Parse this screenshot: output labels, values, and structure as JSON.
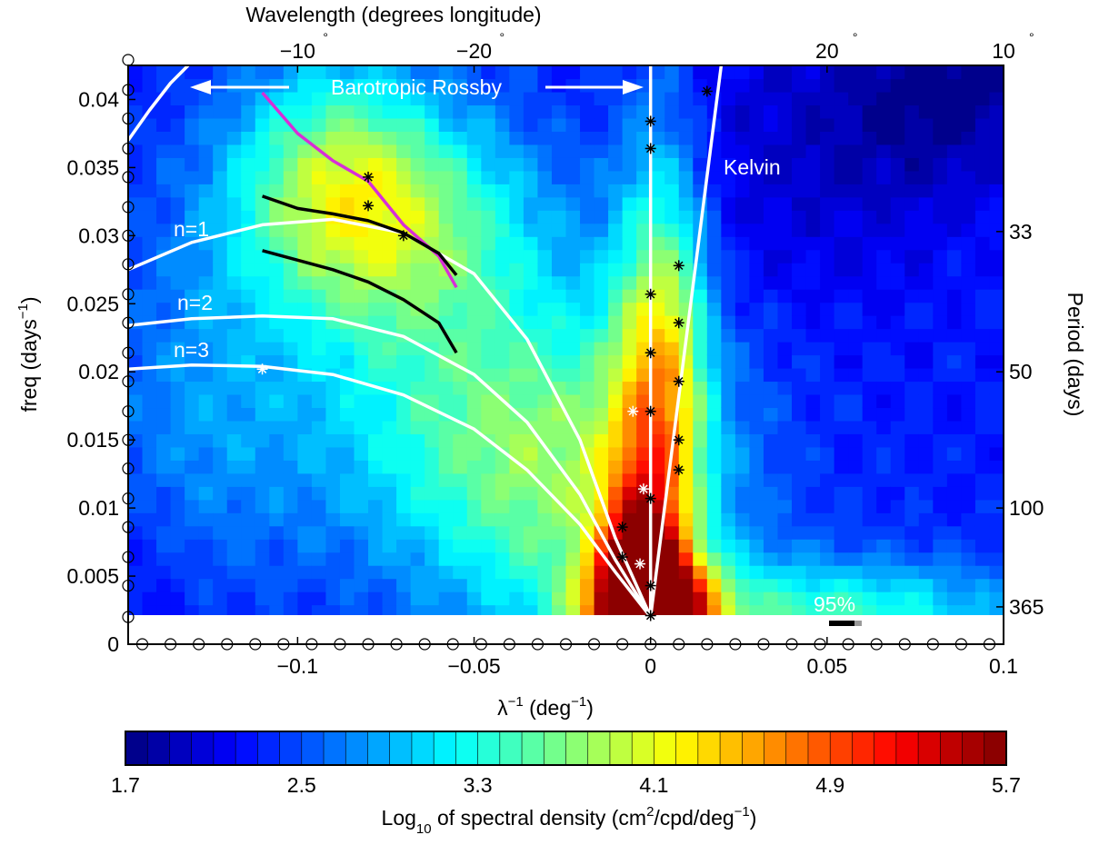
{
  "chart_data": {
    "type": "heatmap",
    "top_axis": {
      "label": "Wavelength (degrees longitude)",
      "ticks": [
        {
          "x": -0.1,
          "label": "−10",
          "sup": "°"
        },
        {
          "x": -0.05,
          "label": "−20",
          "sup": "°"
        },
        {
          "x": 0.05,
          "label": "20",
          "sup": "°"
        },
        {
          "x": 0.1,
          "label": "10",
          "sup": "°"
        }
      ]
    },
    "x_axis": {
      "label_main": "λ",
      "label_sup": "−1",
      "label_rest": " (deg",
      "label_sup2": "−1",
      "label_end": ")",
      "range": [
        -0.148,
        0.1
      ],
      "ticks": [
        -0.1,
        -0.05,
        0,
        0.05,
        0.1
      ],
      "tick_labels": [
        "−0.1",
        "−0.05",
        "0",
        "0.05",
        "0.1"
      ]
    },
    "y_axis": {
      "label_main": "freq (days",
      "label_sup": "−1",
      "label_end": ")",
      "range": [
        0,
        0.0425
      ],
      "ticks": [
        0,
        0.005,
        0.01,
        0.015,
        0.02,
        0.025,
        0.03,
        0.035,
        0.04
      ],
      "tick_labels": [
        "0",
        "0.005",
        "0.01",
        "0.015",
        "0.02",
        "0.025",
        "0.03",
        "0.035",
        "0.04"
      ]
    },
    "right_axis": {
      "label": "Period (days)",
      "ticks": [
        {
          "freq": 0.0303,
          "label": "33"
        },
        {
          "freq": 0.02,
          "label": "50"
        },
        {
          "freq": 0.01,
          "label": "100"
        },
        {
          "freq": 0.00274,
          "label": "365"
        }
      ]
    },
    "annotations": {
      "barotropic": "Barotropic Rossby",
      "kelvin": "Kelvin",
      "n1": "n=1",
      "n2": "n=2",
      "n3": "n=3",
      "significance": "95%"
    },
    "colorbar": {
      "min": 1.7,
      "max": 5.7,
      "ticks": [
        1.7,
        2.5,
        3.3,
        4.1,
        4.9,
        5.7
      ],
      "tick_labels": [
        "1.7",
        "2.5",
        "3.3",
        "4.1",
        "4.9",
        "5.7"
      ],
      "label_pre": "Log",
      "label_sub": "10",
      "label_mid": " of spectral density (cm",
      "label_sup": "2",
      "label_mid2": "/cpd/deg",
      "label_sup3": "−1",
      "label_end": ")"
    },
    "dispersion_curves": [
      {
        "name": "n=1",
        "points": [
          [
            -0.148,
            0.0275
          ],
          [
            -0.13,
            0.0295
          ],
          [
            -0.11,
            0.0308
          ],
          [
            -0.09,
            0.0312
          ],
          [
            -0.07,
            0.0302
          ],
          [
            -0.05,
            0.0272
          ],
          [
            -0.035,
            0.0224
          ],
          [
            -0.02,
            0.015
          ],
          [
            -0.01,
            0.0078
          ],
          [
            0,
            0.002
          ]
        ]
      },
      {
        "name": "n=2",
        "points": [
          [
            -0.148,
            0.0234
          ],
          [
            -0.13,
            0.0239
          ],
          [
            -0.11,
            0.0241
          ],
          [
            -0.09,
            0.0239
          ],
          [
            -0.07,
            0.0226
          ],
          [
            -0.05,
            0.0198
          ],
          [
            -0.035,
            0.0163
          ],
          [
            -0.02,
            0.011
          ],
          [
            -0.01,
            0.0062
          ],
          [
            0,
            0.002
          ]
        ]
      },
      {
        "name": "n=3",
        "points": [
          [
            -0.148,
            0.0202
          ],
          [
            -0.13,
            0.0205
          ],
          [
            -0.11,
            0.0204
          ],
          [
            -0.09,
            0.0198
          ],
          [
            -0.07,
            0.0183
          ],
          [
            -0.05,
            0.0158
          ],
          [
            -0.035,
            0.0128
          ],
          [
            -0.02,
            0.0088
          ],
          [
            -0.01,
            0.0053
          ],
          [
            0,
            0.002
          ]
        ]
      },
      {
        "name": "Kelvin",
        "points": [
          [
            0,
            0.002
          ],
          [
            0.02,
            0.0425
          ]
        ]
      },
      {
        "name": "barotropic",
        "points": [
          [
            -0.148,
            0.037
          ],
          [
            -0.142,
            0.0392
          ],
          [
            -0.136,
            0.0412
          ],
          [
            -0.131,
            0.0425
          ]
        ]
      }
    ],
    "observed_curves": [
      {
        "name": "magenta",
        "color": "#d72ed7",
        "points": [
          [
            -0.11,
            0.0405
          ],
          [
            -0.1,
            0.0375
          ],
          [
            -0.09,
            0.0355
          ],
          [
            -0.08,
            0.034
          ],
          [
            -0.07,
            0.0308
          ],
          [
            -0.06,
            0.0285
          ],
          [
            -0.055,
            0.0262
          ]
        ]
      },
      {
        "name": "black-1",
        "color": "#000000",
        "points": [
          [
            -0.11,
            0.0329
          ],
          [
            -0.1,
            0.032
          ],
          [
            -0.09,
            0.0316
          ],
          [
            -0.08,
            0.0311
          ],
          [
            -0.07,
            0.0302
          ],
          [
            -0.06,
            0.0287
          ],
          [
            -0.055,
            0.0271
          ]
        ]
      },
      {
        "name": "black-2",
        "color": "#000000",
        "points": [
          [
            -0.11,
            0.0289
          ],
          [
            -0.1,
            0.0282
          ],
          [
            -0.09,
            0.0275
          ],
          [
            -0.08,
            0.0266
          ],
          [
            -0.07,
            0.0253
          ],
          [
            -0.06,
            0.0236
          ],
          [
            -0.055,
            0.0214
          ]
        ]
      }
    ],
    "black_stars": [
      [
        -0.08,
        0.0343
      ],
      [
        -0.08,
        0.0322
      ],
      [
        -0.07,
        0.03
      ],
      [
        0,
        0.0384
      ],
      [
        0,
        0.0364
      ],
      [
        0,
        0.0257
      ],
      [
        0,
        0.0214
      ],
      [
        0,
        0.0171
      ],
      [
        0,
        0.0107
      ],
      [
        0,
        0.0043
      ],
      [
        0,
        0.0021
      ],
      [
        0.008,
        0.0278
      ],
      [
        0.008,
        0.0236
      ],
      [
        0.008,
        0.0193
      ],
      [
        0.008,
        0.015
      ],
      [
        0.008,
        0.0128
      ],
      [
        -0.008,
        0.0086
      ],
      [
        -0.008,
        0.0064
      ],
      [
        0.016,
        0.0406
      ]
    ],
    "white_stars": [
      [
        -0.11,
        0.0202
      ],
      [
        -0.005,
        0.0171
      ],
      [
        -0.002,
        0.0114
      ],
      [
        -0.003,
        0.0059
      ]
    ],
    "circles_left_y": [
      0.002,
      0.0043,
      0.0064,
      0.0086,
      0.0107,
      0.0129,
      0.015,
      0.0171,
      0.0193,
      0.0214,
      0.0236,
      0.0257,
      0.0279,
      0.03,
      0.0321,
      0.0343,
      0.0364,
      0.0386,
      0.0407,
      0.0429
    ],
    "circles_bottom_x": [
      -0.144,
      -0.136,
      -0.128,
      -0.12,
      -0.112,
      -0.104,
      -0.096,
      -0.088,
      -0.08,
      -0.072,
      -0.064,
      -0.056,
      -0.048,
      -0.04,
      -0.032,
      -0.024,
      -0.016,
      -0.008,
      0,
      0.008,
      0.016,
      0.024,
      0.032,
      0.04,
      0.048,
      0.056,
      0.064,
      0.072,
      0.08,
      0.088,
      0.096
    ],
    "heat_field": {
      "base": 2.3,
      "blobs": [
        {
          "x": 0,
          "y": 0.002,
          "sx": 0.012,
          "sy": 0.003,
          "a": 3.3
        },
        {
          "x": -0.004,
          "y": 0.006,
          "sx": 0.008,
          "sy": 0.004,
          "a": 1.5
        },
        {
          "x": 0,
          "y": 0.016,
          "sx": 0.009,
          "sy": 0.014,
          "a": 1.4
        },
        {
          "x": 0.008,
          "y": 0.022,
          "sx": 0.007,
          "sy": 0.01,
          "a": 0.6
        },
        {
          "x": -0.075,
          "y": 0.031,
          "sx": 0.03,
          "sy": 0.006,
          "a": 1.3
        },
        {
          "x": -0.09,
          "y": 0.036,
          "sx": 0.02,
          "sy": 0.006,
          "a": 0.8
        },
        {
          "x": -0.05,
          "y": 0.017,
          "sx": 0.04,
          "sy": 0.008,
          "a": 0.9
        },
        {
          "x": -0.13,
          "y": 0.015,
          "sx": 0.02,
          "sy": 0.01,
          "a": 0.4
        },
        {
          "x": -0.02,
          "y": 0.01,
          "sx": 0.03,
          "sy": 0.008,
          "a": 0.9
        },
        {
          "x": 0.05,
          "y": 0.002,
          "sx": 0.04,
          "sy": 0.003,
          "a": 1.1
        },
        {
          "x": 0.045,
          "y": 0.036,
          "sx": 0.03,
          "sy": 0.008,
          "a": -0.3
        },
        {
          "x": 0.085,
          "y": 0.041,
          "sx": 0.02,
          "sy": 0.005,
          "a": -0.5
        },
        {
          "x": -0.14,
          "y": 0.005,
          "sx": 0.015,
          "sy": 0.006,
          "a": -0.2
        }
      ]
    }
  }
}
